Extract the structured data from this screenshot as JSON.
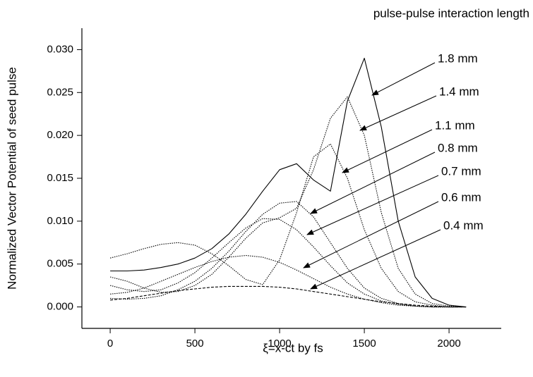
{
  "chart_data": {
    "type": "line",
    "title": "pulse-pulse interaction length",
    "x_label": "ξ=x-ct by fs",
    "y_label": "Normalized Vector Potential of seed pulse",
    "x": [
      0,
      100,
      200,
      300,
      400,
      500,
      600,
      700,
      800,
      900,
      1000,
      1100,
      1200,
      1300,
      1400,
      1500,
      1600,
      1700,
      1800,
      1900,
      2000,
      2100
    ],
    "series": [
      {
        "name": "1.8 mm",
        "color": "#000000",
        "dash": "solid",
        "values": [
          0.0042,
          0.0042,
          0.0043,
          0.0046,
          0.005,
          0.0057,
          0.0068,
          0.0085,
          0.0108,
          0.0135,
          0.016,
          0.0167,
          0.0148,
          0.0135,
          0.024,
          0.029,
          0.021,
          0.01,
          0.0035,
          0.001,
          0.0002,
          0.0
        ]
      },
      {
        "name": "1.4 mm",
        "color": "#000000",
        "dash": "dotted",
        "values": [
          0.0035,
          0.003,
          0.0022,
          0.0017,
          0.0018,
          0.0025,
          0.0038,
          0.0058,
          0.008,
          0.0098,
          0.0104,
          0.0115,
          0.016,
          0.022,
          0.0245,
          0.02,
          0.011,
          0.0045,
          0.0015,
          0.0004,
          0.0001,
          0.0
        ]
      },
      {
        "name": "1.1 mm",
        "color": "#000000",
        "dash": "dotted",
        "values": [
          0.0057,
          0.0062,
          0.0068,
          0.0073,
          0.0075,
          0.0072,
          0.0062,
          0.0048,
          0.0032,
          0.0026,
          0.0055,
          0.011,
          0.0175,
          0.019,
          0.015,
          0.009,
          0.0045,
          0.0018,
          0.0006,
          0.0002,
          0.0,
          0.0
        ]
      },
      {
        "name": "0.8 mm",
        "color": "#000000",
        "dash": "dotted",
        "values": [
          0.001,
          0.0009,
          0.001,
          0.0013,
          0.002,
          0.003,
          0.0045,
          0.0065,
          0.0088,
          0.0108,
          0.0121,
          0.0123,
          0.0105,
          0.0075,
          0.0045,
          0.0022,
          0.001,
          0.0004,
          0.0001,
          0.0,
          0.0,
          0.0
        ]
      },
      {
        "name": "0.7 mm",
        "color": "#000000",
        "dash": "dotted",
        "values": [
          0.0025,
          0.002,
          0.0018,
          0.002,
          0.0028,
          0.004,
          0.0057,
          0.0075,
          0.0092,
          0.0103,
          0.0102,
          0.009,
          0.007,
          0.0048,
          0.0028,
          0.0015,
          0.0007,
          0.0003,
          0.0001,
          0.0,
          0.0,
          0.0
        ]
      },
      {
        "name": "0.6 mm",
        "color": "#000000",
        "dash": "dotted",
        "values": [
          0.0015,
          0.0017,
          0.0022,
          0.003,
          0.0038,
          0.0046,
          0.0053,
          0.0058,
          0.006,
          0.0058,
          0.0052,
          0.0043,
          0.0033,
          0.0023,
          0.0015,
          0.0009,
          0.0005,
          0.0002,
          0.0001,
          0.0,
          0.0,
          0.0
        ]
      },
      {
        "name": "0.4 mm",
        "color": "#000000",
        "dash": "dashed",
        "values": [
          0.0008,
          0.001,
          0.0013,
          0.0016,
          0.0019,
          0.0021,
          0.0023,
          0.0024,
          0.0024,
          0.0024,
          0.0023,
          0.0021,
          0.0018,
          0.0015,
          0.0012,
          0.0009,
          0.0006,
          0.0004,
          0.0002,
          0.0001,
          0.0,
          0.0
        ]
      }
    ],
    "xlim": [
      -167,
      2308
    ],
    "ylim": [
      -0.0025,
      0.0325
    ],
    "xticks": [
      0,
      500,
      1000,
      1500,
      2000
    ],
    "yticks": [
      {
        "value": 0,
        "label": "0.000"
      },
      {
        "value": 0.005,
        "label": "0.005"
      },
      {
        "value": 0.01,
        "label": "0.010"
      },
      {
        "value": 0.015,
        "label": "0.015"
      },
      {
        "value": 0.02,
        "label": "0.020"
      },
      {
        "value": 0.025,
        "label": "0.025"
      },
      {
        "value": 0.03,
        "label": "0.030"
      }
    ],
    "grid": false
  }
}
